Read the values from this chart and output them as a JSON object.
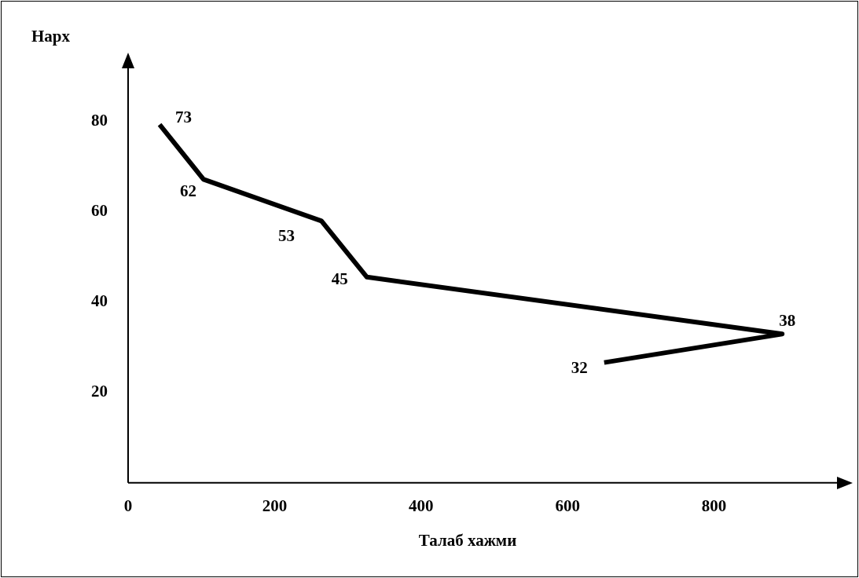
{
  "chart_data": {
    "type": "line",
    "xlabel": "Талаб хажми",
    "ylabel": "Нарх",
    "x": [
      43,
      103,
      264,
      326,
      893,
      650
    ],
    "series": [
      {
        "color": "#000000",
        "values": [
          79.2,
          67.1,
          57.9,
          45.5,
          32.9,
          26.6
        ]
      }
    ],
    "annotations": [
      {
        "text": "73",
        "x": 43,
        "y": 79.2
      },
      {
        "text": "62",
        "x": 103,
        "y": 67.1
      },
      {
        "text": "53",
        "x": 264,
        "y": 57.9
      },
      {
        "text": "45",
        "x": 326,
        "y": 45.5
      },
      {
        "text": "38",
        "x": 893,
        "y": 32.9
      },
      {
        "text": "32",
        "x": 650,
        "y": 26.6
      }
    ],
    "xlim": [
      0,
      970
    ],
    "xticks": [
      0,
      200,
      400,
      600,
      800
    ],
    "ylim": [
      0,
      92
    ],
    "yticks": [
      20,
      40,
      60,
      80
    ],
    "grid": false,
    "legend": false,
    "marker": "none",
    "line_style": "solid"
  }
}
